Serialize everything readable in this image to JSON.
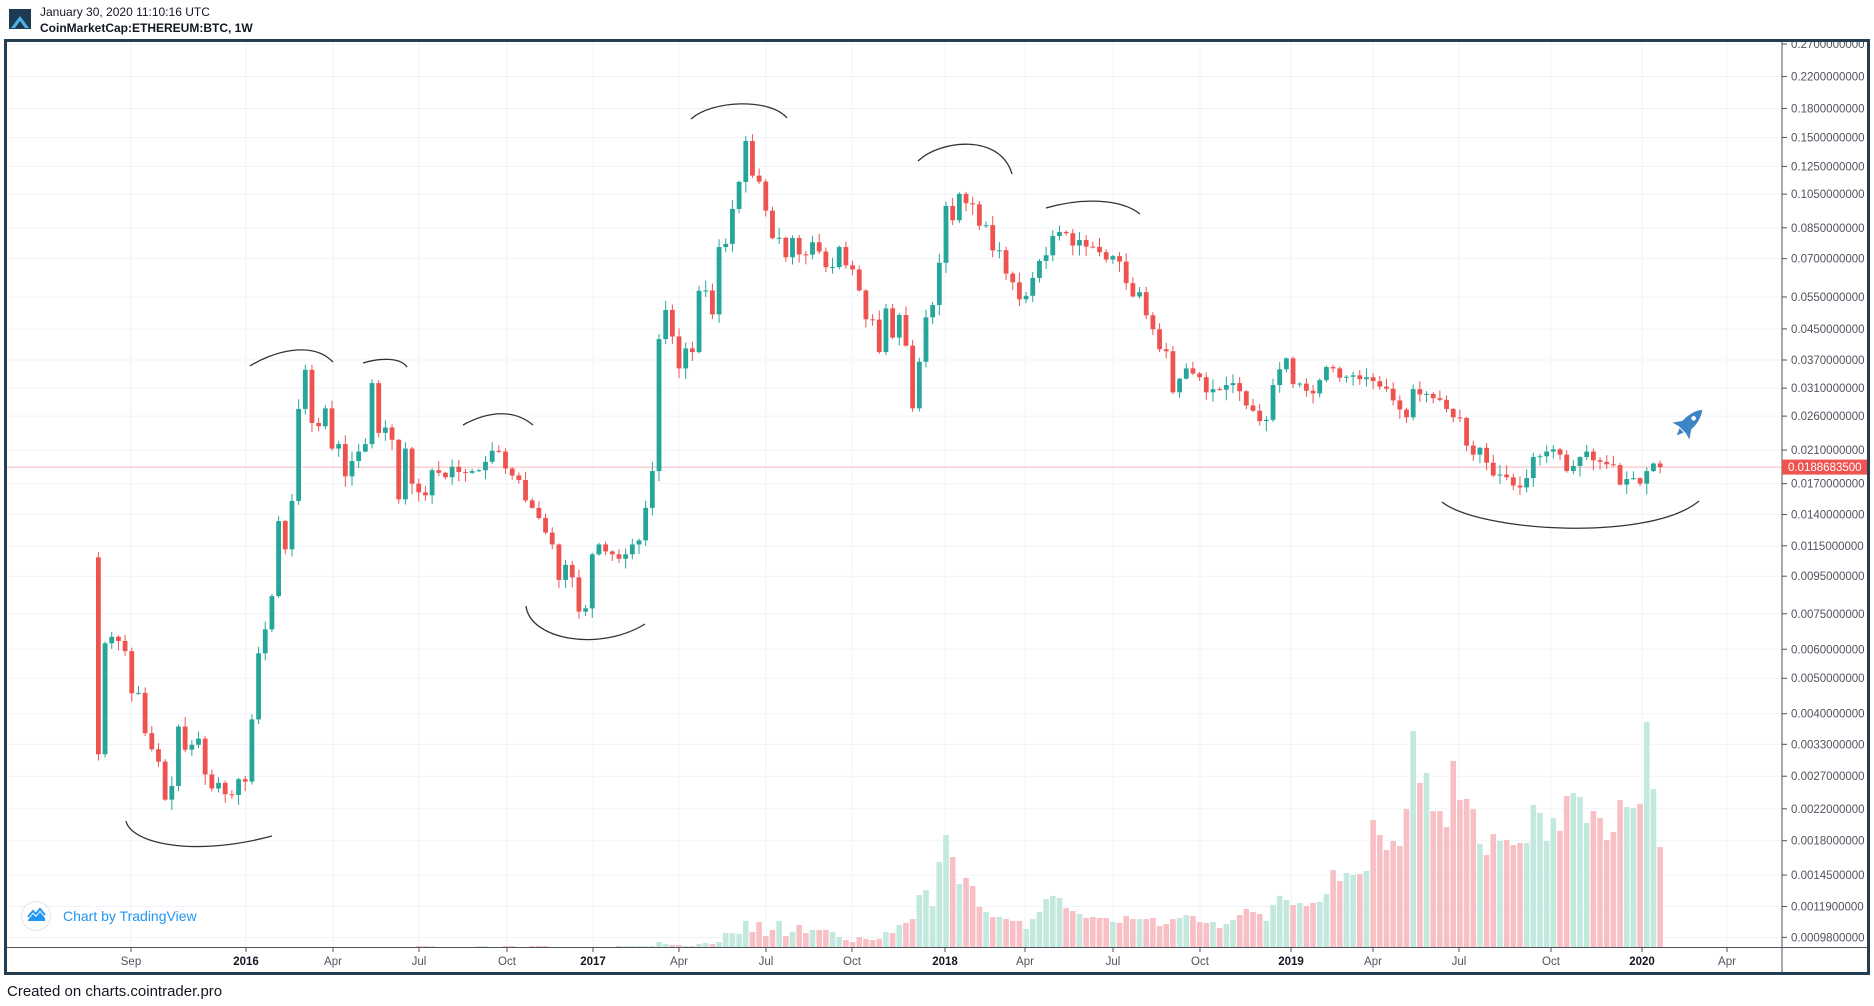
{
  "header": {
    "timestamp": "January 30, 2020 11:10:16 UTC",
    "symbol": "CoinMarketCap:ETHEREUM:BTC, 1W"
  },
  "attribution": "Chart by TradingView",
  "footer": "Created on charts.cointrader.pro",
  "colors": {
    "up": "#26a69a",
    "down": "#ef5350",
    "up_volume": "#c3e8de",
    "down_volume": "#f8c0c4",
    "drawing": "#333333",
    "rocket": "#3d85c6",
    "frame": "#253e52"
  },
  "icons": {
    "logo": "cointrader-logo",
    "badge": "tradingview-logo-icon",
    "sticker": "rocket-icon"
  },
  "last_price_label": "0.0188683500",
  "chart_data": {
    "type": "candlestick",
    "interval": "1W",
    "scale": "log",
    "ylim": [
      0.00098,
      0.27
    ],
    "grid": true,
    "y_tick_labels": [
      "0.2700000000",
      "0.2200000000",
      "0.1800000000",
      "0.1500000000",
      "0.1250000000",
      "0.1050000000",
      "0.0850000000",
      "0.0700000000",
      "0.0550000000",
      "0.0450000000",
      "0.0370000000",
      "0.0310000000",
      "0.0260000000",
      "0.0210000000",
      "0.0170000000",
      "0.0140000000",
      "0.0115000000",
      "0.0095000000",
      "0.0075000000",
      "0.0060000000",
      "0.0050000000",
      "0.0040000000",
      "0.0033000000",
      "0.0027000000",
      "0.0022000000",
      "0.0018000000",
      "0.0014500000",
      "0.0011900000",
      "0.0009800000"
    ],
    "x_tick_labels": [
      {
        "text": "Sep",
        "year": false
      },
      {
        "text": "2016",
        "year": true
      },
      {
        "text": "Apr",
        "year": false
      },
      {
        "text": "Jul",
        "year": false
      },
      {
        "text": "Oct",
        "year": false
      },
      {
        "text": "2017",
        "year": true
      },
      {
        "text": "Apr",
        "year": false
      },
      {
        "text": "Jul",
        "year": false
      },
      {
        "text": "Oct",
        "year": false
      },
      {
        "text": "2018",
        "year": true
      },
      {
        "text": "Apr",
        "year": false
      },
      {
        "text": "Jul",
        "year": false
      },
      {
        "text": "Oct",
        "year": false
      },
      {
        "text": "2019",
        "year": true
      },
      {
        "text": "Apr",
        "year": false
      },
      {
        "text": "Jul",
        "year": false
      },
      {
        "text": "Oct",
        "year": false
      },
      {
        "text": "2020",
        "year": true
      },
      {
        "text": "Apr",
        "year": false
      }
    ],
    "first_open": 0.0107,
    "last_price": 0.01886835,
    "closes": [
      0.0031,
      0.00623,
      0.00649,
      0.00632,
      0.00593,
      0.00455,
      0.00456,
      0.00354,
      0.0032,
      0.00296,
      0.00233,
      0.00254,
      0.00369,
      0.00319,
      0.00329,
      0.00342,
      0.00273,
      0.0025,
      0.00259,
      0.00241,
      0.0024,
      0.00265,
      0.00261,
      0.00386,
      0.00585,
      0.0068,
      0.00838,
      0.01344,
      0.01125,
      0.01525,
      0.0272,
      0.0348,
      0.0249,
      0.0244,
      0.0273,
      0.0212,
      0.0218,
      0.0178,
      0.0196,
      0.0208,
      0.0218,
      0.032,
      0.0234,
      0.0242,
      0.0224,
      0.0154,
      0.0212,
      0.017,
      0.0161,
      0.0158,
      0.0185,
      0.0182,
      0.0177,
      0.0189,
      0.0183,
      0.0182,
      0.0184,
      0.0185,
      0.0195,
      0.0209,
      0.0208,
      0.0187,
      0.0179,
      0.0174,
      0.0153,
      0.0146,
      0.0137,
      0.0125,
      0.0116,
      0.00928,
      0.0102,
      0.00943,
      0.0076,
      0.00776,
      0.0109,
      0.0116,
      0.0111,
      0.0109,
      0.0106,
      0.0109,
      0.0116,
      0.0119,
      0.0146,
      0.0184,
      0.0422,
      0.0507,
      0.0429,
      0.0351,
      0.0398,
      0.0389,
      0.0572,
      0.0573,
      0.0493,
      0.0753,
      0.0768,
      0.0957,
      0.1134,
      0.1467,
      0.118,
      0.1136,
      0.0947,
      0.0796,
      0.0798,
      0.0706,
      0.0797,
      0.0719,
      0.0718,
      0.0776,
      0.0732,
      0.0663,
      0.0664,
      0.0753,
      0.0671,
      0.0654,
      0.0573,
      0.0478,
      0.0477,
      0.0389,
      0.0512,
      0.0426,
      0.0491,
      0.0405,
      0.0273,
      0.0366,
      0.0484,
      0.0523,
      0.0682,
      0.0975,
      0.0891,
      0.1052,
      0.0992,
      0.0985,
      0.0861,
      0.0864,
      0.0737,
      0.0738,
      0.0637,
      0.0603,
      0.0542,
      0.0554,
      0.062,
      0.069,
      0.0715,
      0.0807,
      0.0828,
      0.0821,
      0.076,
      0.0787,
      0.0755,
      0.0754,
      0.0729,
      0.0696,
      0.0711,
      0.0687,
      0.06,
      0.0552,
      0.0567,
      0.049,
      0.0449,
      0.0396,
      0.0391,
      0.0302,
      0.0329,
      0.0351,
      0.034,
      0.0332,
      0.0302,
      0.0308,
      0.0307,
      0.0316,
      0.032,
      0.0304,
      0.0278,
      0.0269,
      0.0252,
      0.0254,
      0.0316,
      0.0349,
      0.0374,
      0.0318,
      0.0319,
      0.0305,
      0.03,
      0.0326,
      0.0354,
      0.0351,
      0.0331,
      0.0333,
      0.0336,
      0.0328,
      0.0332,
      0.0324,
      0.0313,
      0.0309,
      0.0287,
      0.0271,
      0.0258,
      0.0308,
      0.0298,
      0.0299,
      0.0291,
      0.0288,
      0.0272,
      0.0258,
      0.0257,
      0.0216,
      0.0204,
      0.0213,
      0.0194,
      0.0179,
      0.018,
      0.0177,
      0.0168,
      0.0166,
      0.0176,
      0.0201,
      0.0202,
      0.0208,
      0.0211,
      0.0204,
      0.0184,
      0.019,
      0.0201,
      0.0208,
      0.0197,
      0.0195,
      0.0192,
      0.0191,
      0.0169,
      0.0175,
      0.0176,
      0.017,
      0.0184,
      0.0193,
      0.01887
    ],
    "volume_pct_of_max": [
      0,
      0,
      0,
      0,
      0,
      0,
      0,
      0,
      0,
      0,
      0,
      0,
      0,
      0,
      0,
      0,
      0,
      0,
      0,
      0,
      0,
      0,
      0,
      0,
      0,
      0,
      0,
      0,
      0,
      0,
      0,
      0,
      0,
      0,
      0,
      0,
      0,
      0,
      0,
      0,
      0,
      0,
      0,
      0,
      0,
      0,
      0,
      0,
      0.3,
      0.3,
      0.3,
      0,
      0,
      0,
      0,
      0,
      0,
      0.3,
      0.3,
      0,
      0,
      0.3,
      0.3,
      0,
      0,
      0.3,
      0.3,
      0.3,
      0,
      0,
      0,
      0,
      0,
      0,
      0,
      0,
      0,
      0,
      0.4,
      0.4,
      0.4,
      0.4,
      0.4,
      0.4,
      2.2,
      1.3,
      0.9,
      0.9,
      0.4,
      0.4,
      1.3,
      1.8,
      1.3,
      2.2,
      6.2,
      6.2,
      5.8,
      11.6,
      6.7,
      11.1,
      4.9,
      7.6,
      11.6,
      4.9,
      6.7,
      9.8,
      6.2,
      7.6,
      7.6,
      7.6,
      6.7,
      4.4,
      3.1,
      2.2,
      4.4,
      3.6,
      3.1,
      3.6,
      6.7,
      6.2,
      9.8,
      10.7,
      12.4,
      23.1,
      25.3,
      18.2,
      37.8,
      49.8,
      40,
      28,
      30.7,
      27.1,
      17.8,
      15.6,
      13.3,
      13.3,
      12.4,
      11.6,
      11.6,
      8,
      12.4,
      15.6,
      21.3,
      22.7,
      21.8,
      17.3,
      16,
      14.7,
      12.9,
      13.3,
      12.9,
      12.9,
      11.1,
      10.7,
      13.8,
      12.4,
      12.4,
      12.4,
      12.9,
      9.3,
      10.2,
      12.4,
      12.9,
      14.2,
      13.8,
      11.1,
      10.7,
      11.1,
      8.4,
      10.2,
      12,
      14.2,
      16.9,
      15.6,
      14.7,
      11.6,
      18.7,
      22.7,
      20.9,
      18.7,
      19.6,
      18.2,
      19.6,
      20,
      23.6,
      34.2,
      29.3,
      32.9,
      32,
      32.4,
      33.8,
      56.4,
      49.8,
      43.1,
      47.1,
      44.9,
      61.3,
      96,
      72.9,
      77.3,
      60.4,
      60.4,
      53.3,
      82.7,
      65.3,
      65.8,
      61.3,
      45.8,
      40.9,
      50.2,
      47.1,
      47.6,
      45.3,
      46.2,
      46.2,
      63.1,
      59.6,
      47.1,
      57.3,
      51.6,
      67.1,
      68.4,
      66.7,
      55.1,
      60.4,
      57.3,
      47.6,
      51.1,
      65.3,
      62.2,
      61.8,
      63.6,
      100,
      70.2,
      44.4
    ]
  }
}
